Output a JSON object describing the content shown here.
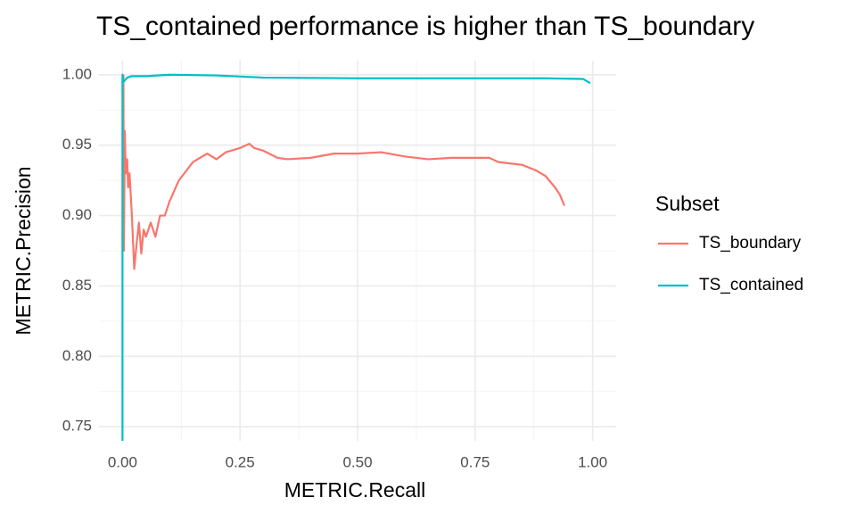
{
  "chart_data": {
    "type": "line",
    "title": "TS_contained performance is higher than TS_boundary",
    "x_label": "METRIC.Recall",
    "y_label": "METRIC.Precision",
    "legend_title": "Subset",
    "legend": "right",
    "grid": true,
    "xlim": [
      -0.05,
      1.05
    ],
    "xticks": [
      {
        "value": 0,
        "label": "0.00"
      },
      0.25,
      {
        "value": 0.5,
        "label": "0.50"
      },
      0.75,
      {
        "value": 1,
        "label": "1.00"
      }
    ],
    "ylim": [
      0.74,
      1.01
    ],
    "yticks": [
      0.75,
      {
        "value": 0.8,
        "label": "0.80"
      },
      0.85,
      {
        "value": 0.9,
        "label": "0.90"
      },
      0.95,
      {
        "value": 1,
        "label": "1.00"
      }
    ],
    "series": [
      {
        "name": "TS_boundary",
        "color": "#F8766D",
        "x": [
          0.002,
          0.003,
          0.005,
          0.007,
          0.01,
          0.012,
          0.015,
          0.02,
          0.025,
          0.03,
          0.035,
          0.04,
          0.045,
          0.05,
          0.06,
          0.07,
          0.08,
          0.09,
          0.1,
          0.12,
          0.15,
          0.18,
          0.2,
          0.22,
          0.25,
          0.27,
          0.28,
          0.3,
          0.33,
          0.35,
          0.4,
          0.45,
          0.5,
          0.55,
          0.6,
          0.65,
          0.7,
          0.75,
          0.78,
          0.8,
          0.85,
          0.88,
          0.9,
          0.92,
          0.93,
          0.94
        ],
        "values": [
          1.0,
          0.875,
          0.96,
          0.93,
          0.94,
          0.92,
          0.93,
          0.9,
          0.862,
          0.88,
          0.895,
          0.873,
          0.89,
          0.885,
          0.895,
          0.885,
          0.9,
          0.9,
          0.91,
          0.925,
          0.938,
          0.944,
          0.94,
          0.945,
          0.948,
          0.951,
          0.948,
          0.946,
          0.941,
          0.94,
          0.941,
          0.944,
          0.944,
          0.945,
          0.942,
          0.94,
          0.941,
          0.941,
          0.941,
          0.938,
          0.936,
          0.932,
          0.928,
          0.92,
          0.915,
          0.907
        ]
      },
      {
        "name": "TS_contained",
        "color": "#00BFC4",
        "x": [
          0.0,
          0.0,
          0.002,
          0.005,
          0.01,
          0.02,
          0.05,
          0.1,
          0.2,
          0.3,
          0.5,
          0.7,
          0.9,
          0.98,
          0.995
        ],
        "values": [
          0.74,
          1.0,
          0.995,
          0.996,
          0.998,
          0.999,
          0.999,
          1.0,
          0.9995,
          0.998,
          0.9975,
          0.9975,
          0.9975,
          0.997,
          0.994
        ]
      }
    ]
  }
}
